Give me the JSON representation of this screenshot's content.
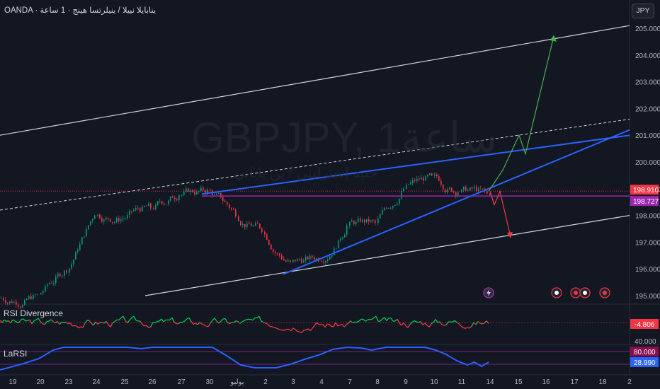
{
  "header": {
    "source": "OANDA · ينابايلا نييلا / ينيلرتسا هينج · 1 ساعة",
    "currency_button": "JPY"
  },
  "watermark": {
    "symbol": "GBPJPY, 1ساعة",
    "subtitle": "جنيه إسترليني / ين ياباني"
  },
  "colors": {
    "background": "#131722",
    "candle_up": "#089981",
    "candle_down": "#f23645",
    "trendline": "#2962ff",
    "channel": "#d1d4dc",
    "horizontal_level": "#9c27b0",
    "price_badge_red": "#f23645",
    "price_badge_purple": "#9c27b0",
    "rsi_up": "#00c853",
    "rsi_down": "#f23645",
    "larsi_line": "#2962ff",
    "projection_up": "#4caf50",
    "projection_down": "#f23645"
  },
  "chart_data": [
    {
      "type": "candlestick",
      "symbol": "GBPJPY",
      "timeframe": "1ساعة",
      "currency": "JPY",
      "x_tick_labels": [
        "19",
        "20",
        "23",
        "24",
        "25",
        "26",
        "27",
        "30",
        "يوليو",
        "2",
        "3",
        "4",
        "7",
        "8",
        "9",
        "10",
        "11",
        "14",
        "15",
        "16",
        "17",
        "18",
        "2"
      ],
      "y_tick_labels": [
        "205.000",
        "204.000",
        "203.000",
        "202.000",
        "201.000",
        "200.000",
        "199.000",
        "198.000",
        "197.000",
        "196.000",
        "195.000"
      ],
      "ylim": [
        194.8,
        205.2
      ],
      "price_badges": [
        {
          "value": "198.910",
          "role": "last price"
        },
        {
          "value": "198.727",
          "role": "horizontal level"
        }
      ],
      "close_path_daily": [
        {
          "x": "19",
          "close": 195.0
        },
        {
          "x": "20",
          "close": 196.0
        },
        {
          "x": "23",
          "close": 198.1
        },
        {
          "x": "24",
          "close": 197.9
        },
        {
          "x": "25",
          "close": 198.3
        },
        {
          "x": "26",
          "close": 198.8
        },
        {
          "x": "27",
          "close": 198.9
        },
        {
          "x": "30",
          "close": 198.1
        },
        {
          "x": "يوليو",
          "close": 197.5
        },
        {
          "x": "2",
          "close": 196.2
        },
        {
          "x": "3",
          "close": 196.4
        },
        {
          "x": "4",
          "close": 197.6
        },
        {
          "x": "7",
          "close": 197.7
        },
        {
          "x": "8",
          "close": 199.0
        },
        {
          "x": "9",
          "close": 199.4
        },
        {
          "x": "10",
          "close": 198.9
        },
        {
          "x": "11",
          "close": 198.8
        },
        {
          "x": "14",
          "close": 198.91
        }
      ],
      "annotations": {
        "channel_top": [
          {
            "x": 0,
            "price": 201.0
          },
          {
            "x": 889,
            "price": 205.1
          }
        ],
        "channel_bottom": [
          {
            "x": 205,
            "price": 195.0
          },
          {
            "x": 889,
            "price": 198.0
          }
        ],
        "channel_mid_dashed": [
          {
            "x": 0,
            "price": 198.2
          },
          {
            "x": 889,
            "price": 201.6
          }
        ],
        "horizontal_level": 198.727,
        "red_dotted_level": 198.91,
        "rising_trendline": [
          {
            "x": 400,
            "price": 195.8
          },
          {
            "x": 889,
            "price": 201.2
          }
        ],
        "upper_trendline": [
          {
            "x": 285,
            "price": 198.8
          },
          {
            "x": 889,
            "price": 201.0
          }
        ],
        "projection_up_ends": 204.7,
        "projection_down_ends": 197.2
      }
    },
    {
      "type": "line",
      "title": "RSI Divergence",
      "last_value": "-4.806",
      "tick_labels": [
        "40.000"
      ]
    },
    {
      "type": "line",
      "title": "LaRSI",
      "levels": [
        "80.000"
      ],
      "last_value": "28.990"
    }
  ]
}
